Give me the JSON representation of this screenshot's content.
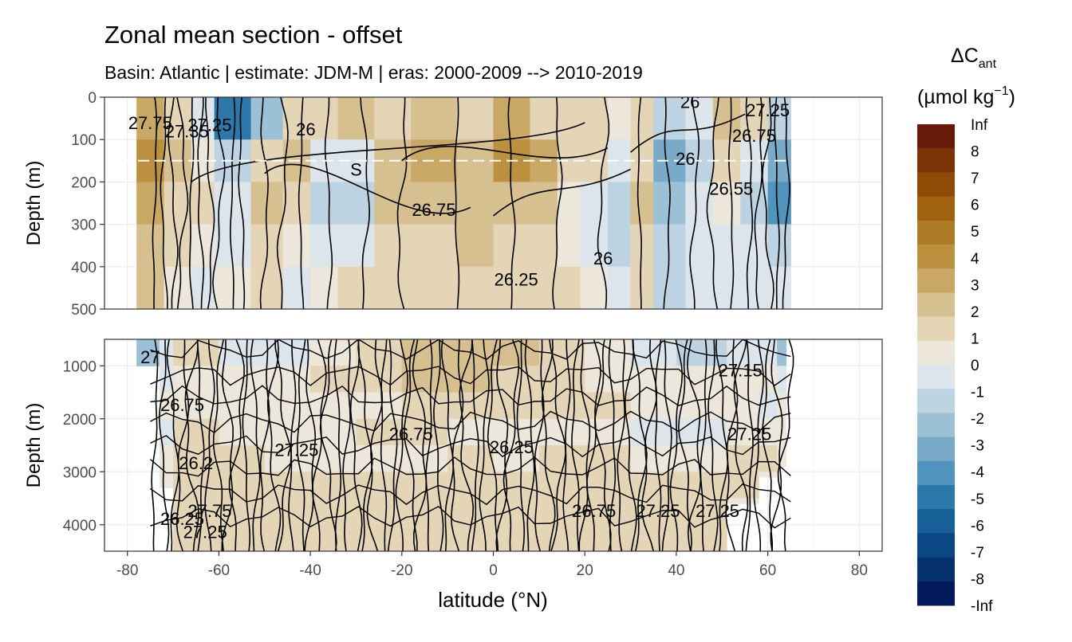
{
  "chart_data": {
    "type": "heatmap",
    "title": "Zonal mean section - offset",
    "subtitle": "Basin: Atlantic | estimate: JDM-M | eras: 2000-2009 --> 2010-2019",
    "xlabel": "latitude (°N)",
    "ylabel": "Depth (m)",
    "xlim": [
      -85,
      85
    ],
    "x_ticks": [
      -80,
      -60,
      -40,
      -20,
      0,
      20,
      40,
      60,
      80
    ],
    "data_lat_range": [
      -78,
      65
    ],
    "grid": true,
    "panels": [
      {
        "name": "upper",
        "ylim": [
          0,
          500
        ],
        "y_reversed": true,
        "y_ticks": [
          0,
          100,
          200,
          300,
          400,
          500
        ],
        "dashed_reference_depth": 150
      },
      {
        "name": "lower",
        "ylim": [
          500,
          4500
        ],
        "y_reversed": true,
        "y_ticks": [
          1000,
          2000,
          3000,
          4000
        ]
      }
    ],
    "legend": {
      "title_main": "ΔC",
      "title_sub": "ant",
      "unit_main": "(µmol kg",
      "unit_sup": "−1",
      "unit_close": ")",
      "position": "right",
      "labels": [
        "Inf",
        "8",
        "7",
        "6",
        "5",
        "4",
        "3",
        "2",
        "1",
        "0",
        "-1",
        "-2",
        "-3",
        "-4",
        "-5",
        "-6",
        "-7",
        "-8",
        "-Inf"
      ],
      "colors": [
        "#67190a",
        "#7c3406",
        "#8f4a06",
        "#a0620e",
        "#ae7b26",
        "#bb913f",
        "#c8a864",
        "#d6c090",
        "#e3d5b5",
        "#ede6da",
        "#dce5eb",
        "#bdd3e2",
        "#9cc1d7",
        "#79abc9",
        "#5093bb",
        "#2c78aa",
        "#175f97",
        "#0a4784",
        "#06326f",
        "#021a5c"
      ]
    },
    "upper_columns": [
      {
        "lat": [
          -78,
          -72
        ],
        "v": [
          3,
          4,
          3,
          2,
          2
        ]
      },
      {
        "lat": [
          -72,
          -66
        ],
        "v": [
          1,
          2,
          1,
          1,
          0
        ]
      },
      {
        "lat": [
          -66,
          -61
        ],
        "v": [
          -1,
          0,
          1,
          0,
          -1
        ]
      },
      {
        "lat": [
          -61,
          -53
        ],
        "v": [
          -6,
          -2,
          -1,
          -1,
          0
        ]
      },
      {
        "lat": [
          -53,
          -46
        ],
        "v": [
          -3,
          1,
          2,
          1,
          1
        ]
      },
      {
        "lat": [
          -46,
          -40
        ],
        "v": [
          1,
          2,
          1,
          0,
          -1
        ]
      },
      {
        "lat": [
          -40,
          -34
        ],
        "v": [
          1,
          -1,
          -2,
          -1,
          0
        ]
      },
      {
        "lat": [
          -34,
          -26
        ],
        "v": [
          2,
          -1,
          -2,
          -1,
          1
        ]
      },
      {
        "lat": [
          -26,
          -18
        ],
        "v": [
          1,
          2,
          2,
          1,
          1
        ]
      },
      {
        "lat": [
          -18,
          -8
        ],
        "v": [
          2,
          3,
          2,
          1,
          1
        ]
      },
      {
        "lat": [
          -8,
          0
        ],
        "v": [
          1,
          2,
          2,
          2,
          1
        ]
      },
      {
        "lat": [
          0,
          8
        ],
        "v": [
          3,
          4,
          2,
          1,
          1
        ]
      },
      {
        "lat": [
          8,
          14
        ],
        "v": [
          1,
          3,
          2,
          1,
          1
        ]
      },
      {
        "lat": [
          14,
          19
        ],
        "v": [
          1,
          1,
          0,
          0,
          1
        ]
      },
      {
        "lat": [
          19,
          25
        ],
        "v": [
          1,
          1,
          -1,
          -1,
          0
        ]
      },
      {
        "lat": [
          25,
          30
        ],
        "v": [
          0,
          -1,
          -2,
          -2,
          -1
        ]
      },
      {
        "lat": [
          30,
          35
        ],
        "v": [
          1,
          1,
          2,
          1,
          1
        ]
      },
      {
        "lat": [
          35,
          42
        ],
        "v": [
          -2,
          -4,
          -3,
          -2,
          -2
        ]
      },
      {
        "lat": [
          42,
          48
        ],
        "v": [
          -1,
          -2,
          -1,
          -1,
          -1
        ]
      },
      {
        "lat": [
          48,
          54
        ],
        "v": [
          2,
          1,
          0,
          -1,
          -1
        ]
      },
      {
        "lat": [
          54,
          60
        ],
        "v": [
          1,
          -1,
          -2,
          -1,
          -1
        ]
      },
      {
        "lat": [
          60,
          65
        ],
        "v": [
          -2,
          -4,
          -5,
          -2,
          -1
        ]
      }
    ],
    "lower_columns": [
      {
        "lat": [
          -78,
          -73
        ],
        "top": 500,
        "bottom": 1000,
        "v": [
          -3,
          0,
          0,
          0,
          0,
          0,
          0,
          0
        ]
      },
      {
        "lat": [
          -73,
          -70
        ],
        "top": 500,
        "bottom": 3300,
        "v": [
          -1,
          -1,
          0,
          -1,
          0,
          0,
          0,
          0
        ]
      },
      {
        "lat": [
          -70,
          -60
        ],
        "top": 500,
        "bottom": 4500,
        "v": [
          1,
          0,
          0,
          1,
          1,
          1,
          1,
          1
        ]
      },
      {
        "lat": [
          -60,
          -50
        ],
        "top": 500,
        "bottom": 4500,
        "v": [
          -1,
          0,
          0,
          0,
          1,
          1,
          1,
          1
        ]
      },
      {
        "lat": [
          -50,
          -40
        ],
        "top": 500,
        "bottom": 4500,
        "v": [
          -1,
          0,
          0,
          0,
          0,
          1,
          1,
          1
        ]
      },
      {
        "lat": [
          -40,
          -30
        ],
        "top": 500,
        "bottom": 4500,
        "v": [
          0,
          1,
          0,
          0,
          0,
          1,
          1,
          1
        ]
      },
      {
        "lat": [
          -30,
          -20
        ],
        "top": 500,
        "bottom": 4500,
        "v": [
          1,
          1,
          0,
          1,
          0,
          1,
          1,
          1
        ]
      },
      {
        "lat": [
          -20,
          -10
        ],
        "top": 500,
        "bottom": 4500,
        "v": [
          2,
          2,
          1,
          1,
          0,
          1,
          1,
          1
        ]
      },
      {
        "lat": [
          -10,
          0
        ],
        "top": 500,
        "bottom": 4500,
        "v": [
          2,
          2,
          1,
          0,
          1,
          1,
          1,
          1
        ]
      },
      {
        "lat": [
          0,
          10
        ],
        "top": 500,
        "bottom": 4500,
        "v": [
          2,
          1,
          1,
          0,
          0,
          1,
          1,
          1
        ]
      },
      {
        "lat": [
          10,
          20
        ],
        "top": 500,
        "bottom": 4500,
        "v": [
          1,
          1,
          1,
          0,
          1,
          1,
          1,
          1
        ]
      },
      {
        "lat": [
          20,
          30
        ],
        "top": 500,
        "bottom": 4500,
        "v": [
          0,
          0,
          1,
          0,
          1,
          1,
          1,
          1
        ]
      },
      {
        "lat": [
          30,
          40
        ],
        "top": 500,
        "bottom": 4500,
        "v": [
          -1,
          0,
          0,
          -1,
          0,
          1,
          1,
          1
        ]
      },
      {
        "lat": [
          40,
          51
        ],
        "top": 500,
        "bottom": 4500,
        "v": [
          -2,
          0,
          0,
          -1,
          0,
          1,
          1,
          1
        ]
      },
      {
        "lat": [
          51,
          58
        ],
        "top": 500,
        "bottom": 3600,
        "v": [
          -1,
          0,
          0,
          0,
          1,
          1,
          0,
          0
        ]
      },
      {
        "lat": [
          58,
          62
        ],
        "top": 500,
        "bottom": 3100,
        "v": [
          -1,
          0,
          -1,
          0,
          1,
          0,
          0,
          0
        ]
      },
      {
        "lat": [
          62,
          64
        ],
        "top": 500,
        "bottom": 2900,
        "v": [
          -3,
          -1,
          0,
          0,
          0,
          0,
          0,
          0
        ]
      }
    ],
    "contour_labels": [
      {
        "panel": "upper",
        "lat": -75,
        "depth": 75,
        "text": "27.75"
      },
      {
        "panel": "upper",
        "lat": -67,
        "depth": 95,
        "text": "27.35"
      },
      {
        "panel": "upper",
        "lat": -62,
        "depth": 80,
        "text": "27.25"
      },
      {
        "panel": "upper",
        "lat": -41,
        "depth": 90,
        "text": "26"
      },
      {
        "panel": "upper",
        "lat": -30,
        "depth": 185,
        "text": "S"
      },
      {
        "panel": "upper",
        "lat": -13,
        "depth": 280,
        "text": "26.75"
      },
      {
        "panel": "upper",
        "lat": 5,
        "depth": 445,
        "text": "26.25"
      },
      {
        "panel": "upper",
        "lat": 24,
        "depth": 395,
        "text": "26"
      },
      {
        "panel": "upper",
        "lat": 43,
        "depth": 25,
        "text": "26"
      },
      {
        "panel": "upper",
        "lat": 60,
        "depth": 45,
        "text": "27.25"
      },
      {
        "panel": "upper",
        "lat": 57,
        "depth": 105,
        "text": "26.75"
      },
      {
        "panel": "upper",
        "lat": 42,
        "depth": 160,
        "text": "26"
      },
      {
        "panel": "upper",
        "lat": 52,
        "depth": 230,
        "text": "26.55"
      },
      {
        "panel": "lower",
        "lat": -75,
        "depth": 950,
        "text": "27"
      },
      {
        "panel": "lower",
        "lat": -68,
        "depth": 1850,
        "text": "26.75"
      },
      {
        "panel": "lower",
        "lat": -65,
        "depth": 2950,
        "text": "26.2"
      },
      {
        "panel": "lower",
        "lat": -62,
        "depth": 3850,
        "text": "27.75"
      },
      {
        "panel": "lower",
        "lat": -68,
        "depth": 4000,
        "text": "26.25"
      },
      {
        "panel": "lower",
        "lat": -63,
        "depth": 4250,
        "text": "27.25"
      },
      {
        "panel": "lower",
        "lat": -43,
        "depth": 2700,
        "text": "27.25"
      },
      {
        "panel": "lower",
        "lat": -18,
        "depth": 2400,
        "text": "26.75"
      },
      {
        "panel": "lower",
        "lat": 4,
        "depth": 2650,
        "text": "26.25"
      },
      {
        "panel": "lower",
        "lat": 22,
        "depth": 3850,
        "text": "26.75"
      },
      {
        "panel": "lower",
        "lat": 36,
        "depth": 3850,
        "text": "27.25"
      },
      {
        "panel": "lower",
        "lat": 49,
        "depth": 3850,
        "text": "27.25"
      },
      {
        "panel": "lower",
        "lat": 56,
        "depth": 2400,
        "text": "27.25"
      },
      {
        "panel": "lower",
        "lat": 54,
        "depth": 1200,
        "text": "27.15"
      }
    ]
  }
}
